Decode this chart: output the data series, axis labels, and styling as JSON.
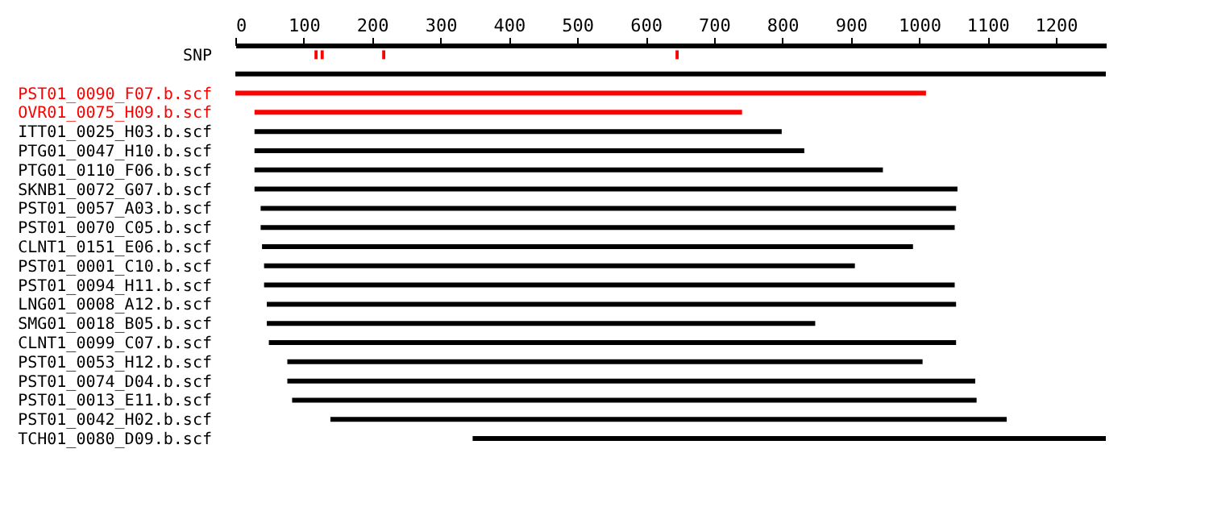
{
  "chart_data": {
    "type": "bar",
    "orientation": "horizontal",
    "categories": [
      "SNP",
      null,
      "PST01_0090_F07.b.scf",
      "OVR01_0075_H09.b.scf",
      "ITT01_0025_H03.b.scf",
      "PTG01_0047_H10.b.scf",
      "PTG01_0110_F06.b.scf",
      "SKNB1_0072_G07.b.scf",
      "PST01_0057_A03.b.scf",
      "PST01_0070_C05.b.scf",
      "CLNT1_0151_E06.b.scf",
      "PST01_0001_C10.b.scf",
      "PST01_0094_H11.b.scf",
      "LNG01_0008_A12.b.scf",
      "SMG01_0018_B05.b.scf",
      "CLNT1_0099_C07.b.scf",
      "PST01_0053_H12.b.scf",
      "PST01_0074_D04.b.scf",
      "PST01_0013_E11.b.scf",
      "PST01_0042_H02.b.scf",
      "TCH01_0080_D09.b.scf"
    ],
    "series": [
      {
        "base": [
          null,
          0,
          0,
          28,
          28,
          28,
          28,
          28,
          37,
          37,
          39,
          42,
          42,
          46,
          46,
          49,
          76,
          76,
          83,
          139,
          347
        ],
        "values": [
          null,
          1273,
          1010,
          713,
          771,
          804,
          919,
          1028,
          1017,
          1015,
          952,
          864,
          1010,
          1008,
          802,
          1005,
          929,
          1006,
          1001,
          989,
          926
        ],
        "colors": [
          "#000000",
          "#000000",
          "#ff0000",
          "#ff0000",
          "#000000",
          "#000000",
          "#000000",
          "#000000",
          "#000000",
          "#000000",
          "#000000",
          "#000000",
          "#000000",
          "#000000",
          "#000000",
          "#000000",
          "#000000",
          "#000000",
          "#000000",
          "#000000",
          "#000000"
        ]
      },
      {
        "type": "scatter",
        "x": [
          "SNP",
          "SNP",
          "SNP",
          "SNP"
        ],
        "values": [
          118,
          127,
          217,
          646
        ],
        "color": "#ff0000",
        "marker": "square"
      }
    ],
    "xlim": [
      0,
      1273
    ],
    "xticks": [
      0,
      100,
      200,
      300,
      400,
      500,
      600,
      700,
      800,
      900,
      1000,
      1100,
      1200
    ],
    "grid": false
  }
}
